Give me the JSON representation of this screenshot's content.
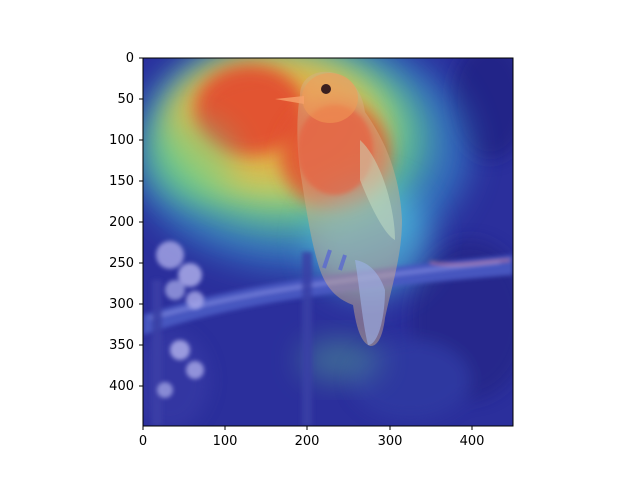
{
  "figure": {
    "x_ticks": [
      "0",
      "100",
      "200",
      "300",
      "400"
    ],
    "y_ticks": [
      "0",
      "50",
      "100",
      "150",
      "200",
      "250",
      "300",
      "350",
      "400"
    ]
  },
  "image": {
    "subject": "bird-on-branch",
    "overlay": "jet-colormap-attention-heatmap",
    "colors": {
      "background_blue": "#2b2f9c",
      "hot_red": "#e2442f",
      "warm_orange": "#f08a2a",
      "yellow": "#e9e55a",
      "green": "#67d08a",
      "cyan": "#59d7e6"
    }
  }
}
